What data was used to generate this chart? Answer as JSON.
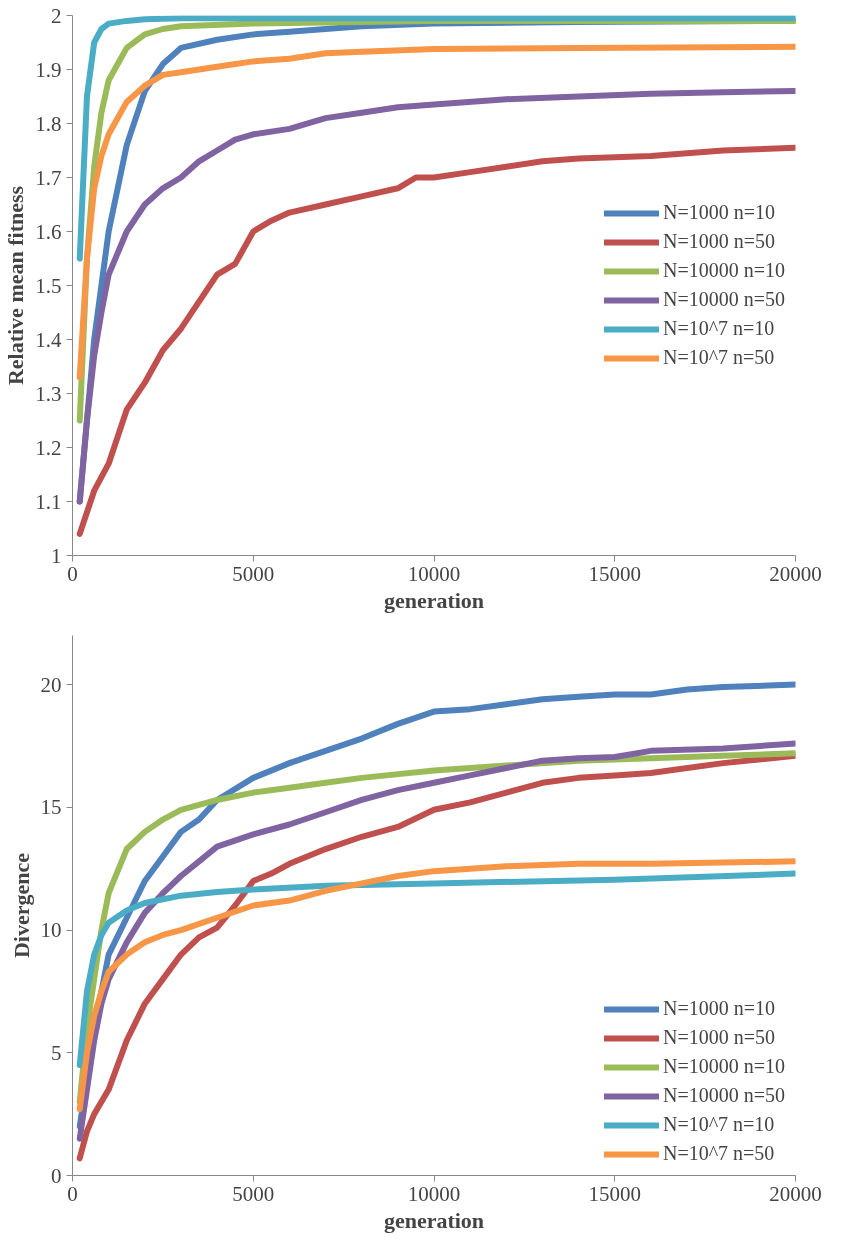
{
  "chart_data": [
    {
      "type": "line",
      "xlabel": "generation",
      "ylabel": "Relative mean fitness",
      "xlim": [
        0,
        20000
      ],
      "xticks": [
        0,
        5000,
        10000,
        15000,
        20000
      ],
      "ylim": [
        1,
        2
      ],
      "yticks": [
        1,
        1.1,
        1.2,
        1.3,
        1.4,
        1.5,
        1.6,
        1.7,
        1.8,
        1.9,
        2
      ],
      "grid": false,
      "legend": "right",
      "marker": "none",
      "line_style": "solid",
      "series": [
        {
          "name": "N=1000 n=10",
          "color": "#4f81bd",
          "x": [
            200,
            400,
            600,
            800,
            1000,
            1500,
            2000,
            2500,
            3000,
            4000,
            5000,
            6000,
            7000,
            8000,
            10000,
            14000,
            20000
          ],
          "values": [
            1.1,
            1.25,
            1.4,
            1.5,
            1.6,
            1.76,
            1.86,
            1.91,
            1.94,
            1.955,
            1.965,
            1.97,
            1.975,
            1.98,
            1.985,
            1.988,
            1.99
          ]
        },
        {
          "name": "N=1000 n=50",
          "color": "#c0504d",
          "x": [
            200,
            400,
            600,
            1000,
            1500,
            2000,
            2500,
            3000,
            3500,
            4000,
            4500,
            5000,
            5500,
            6000,
            7000,
            8000,
            9000,
            9500,
            10000,
            11000,
            12000,
            13000,
            14000,
            16000,
            18000,
            20000
          ],
          "values": [
            1.04,
            1.08,
            1.12,
            1.17,
            1.27,
            1.32,
            1.38,
            1.42,
            1.47,
            1.52,
            1.54,
            1.6,
            1.62,
            1.635,
            1.65,
            1.665,
            1.68,
            1.7,
            1.7,
            1.71,
            1.72,
            1.73,
            1.735,
            1.74,
            1.75,
            1.755
          ]
        },
        {
          "name": "N=10000 n=10",
          "color": "#9bbb59",
          "x": [
            200,
            400,
            600,
            800,
            1000,
            1500,
            2000,
            2500,
            3000,
            5000,
            10000,
            20000
          ],
          "values": [
            1.25,
            1.55,
            1.72,
            1.82,
            1.88,
            1.94,
            1.965,
            1.975,
            1.98,
            1.985,
            1.99,
            1.99
          ]
        },
        {
          "name": "N=10000 n=50",
          "color": "#8064a2",
          "x": [
            200,
            400,
            600,
            800,
            1000,
            1500,
            2000,
            2500,
            3000,
            3500,
            4000,
            4500,
            5000,
            6000,
            7000,
            8000,
            9000,
            10000,
            12000,
            14000,
            16000,
            18000,
            20000
          ],
          "values": [
            1.1,
            1.25,
            1.37,
            1.45,
            1.52,
            1.6,
            1.65,
            1.68,
            1.7,
            1.73,
            1.75,
            1.77,
            1.78,
            1.79,
            1.81,
            1.82,
            1.83,
            1.835,
            1.845,
            1.85,
            1.855,
            1.858,
            1.86
          ]
        },
        {
          "name": "N=10^7 n=10",
          "color": "#4bacc6",
          "x": [
            200,
            400,
            600,
            800,
            1000,
            1500,
            2000,
            3000,
            20000
          ],
          "values": [
            1.55,
            1.85,
            1.95,
            1.975,
            1.985,
            1.99,
            1.993,
            1.995,
            1.995
          ]
        },
        {
          "name": "N=10^7 n=50",
          "color": "#f79646",
          "x": [
            200,
            400,
            600,
            800,
            1000,
            1500,
            2000,
            2500,
            3000,
            4000,
            5000,
            6000,
            7000,
            8000,
            10000,
            14000,
            20000
          ],
          "values": [
            1.33,
            1.55,
            1.68,
            1.74,
            1.78,
            1.84,
            1.87,
            1.89,
            1.895,
            1.905,
            1.915,
            1.92,
            1.93,
            1.933,
            1.938,
            1.94,
            1.942
          ]
        }
      ]
    },
    {
      "type": "line",
      "xlabel": "generation",
      "ylabel": "Divergence",
      "xlim": [
        0,
        20000
      ],
      "xticks": [
        0,
        5000,
        10000,
        15000,
        20000
      ],
      "ylim": [
        0,
        22
      ],
      "yticks": [
        0,
        5,
        10,
        15,
        20
      ],
      "grid": false,
      "legend": "bottom right",
      "marker": "none",
      "line_style": "solid",
      "series": [
        {
          "name": "N=1000 n=10",
          "color": "#4f81bd",
          "x": [
            200,
            400,
            600,
            800,
            1000,
            1500,
            2000,
            2500,
            3000,
            3500,
            4000,
            5000,
            6000,
            7000,
            8000,
            9000,
            10000,
            11000,
            12000,
            13000,
            14000,
            15000,
            16000,
            17000,
            18000,
            20000
          ],
          "values": [
            2.0,
            4.0,
            6.0,
            7.5,
            9.0,
            10.5,
            12.0,
            13.0,
            14.0,
            14.5,
            15.3,
            16.2,
            16.8,
            17.3,
            17.8,
            18.4,
            18.9,
            19.0,
            19.2,
            19.4,
            19.5,
            19.6,
            19.6,
            19.8,
            19.9,
            20.0
          ]
        },
        {
          "name": "N=1000 n=50",
          "color": "#c0504d",
          "x": [
            200,
            400,
            600,
            1000,
            1500,
            2000,
            2500,
            3000,
            3500,
            4000,
            4500,
            5000,
            5500,
            6000,
            7000,
            8000,
            9000,
            10000,
            11000,
            12000,
            13000,
            14000,
            15000,
            16000,
            18000,
            20000
          ],
          "values": [
            0.7,
            1.8,
            2.5,
            3.5,
            5.5,
            7.0,
            8.0,
            9.0,
            9.7,
            10.1,
            11.0,
            12.0,
            12.3,
            12.7,
            13.3,
            13.8,
            14.2,
            14.9,
            15.2,
            15.6,
            16.0,
            16.2,
            16.3,
            16.4,
            16.8,
            17.1
          ]
        },
        {
          "name": "N=10000 n=10",
          "color": "#9bbb59",
          "x": [
            200,
            400,
            600,
            800,
            1000,
            1500,
            2000,
            2500,
            3000,
            4000,
            5000,
            6000,
            7000,
            8000,
            10000,
            12000,
            14000,
            16000,
            18000,
            20000
          ],
          "values": [
            3.0,
            6.0,
            8.0,
            10.0,
            11.5,
            13.3,
            14.0,
            14.5,
            14.9,
            15.3,
            15.6,
            15.8,
            16.0,
            16.2,
            16.5,
            16.7,
            16.9,
            17.0,
            17.1,
            17.2
          ]
        },
        {
          "name": "N=10000 n=50",
          "color": "#8064a2",
          "x": [
            200,
            400,
            600,
            800,
            1000,
            1500,
            2000,
            2500,
            3000,
            3500,
            4000,
            5000,
            6000,
            7000,
            8000,
            9000,
            10000,
            11000,
            12000,
            13000,
            14000,
            15000,
            16000,
            18000,
            20000
          ],
          "values": [
            1.5,
            3.5,
            5.5,
            7.0,
            8.0,
            9.5,
            10.7,
            11.5,
            12.2,
            12.8,
            13.4,
            13.9,
            14.3,
            14.8,
            15.3,
            15.7,
            16.0,
            16.3,
            16.6,
            16.9,
            17.0,
            17.05,
            17.3,
            17.4,
            17.6
          ]
        },
        {
          "name": "N=10^7 n=10",
          "color": "#4bacc6",
          "x": [
            200,
            400,
            600,
            800,
            1000,
            1500,
            2000,
            3000,
            4000,
            5000,
            7000,
            10000,
            15000,
            20000
          ],
          "values": [
            4.5,
            7.5,
            9.0,
            9.8,
            10.3,
            10.8,
            11.1,
            11.4,
            11.55,
            11.65,
            11.8,
            11.9,
            12.05,
            12.3
          ]
        },
        {
          "name": "N=10^7 n=50",
          "color": "#f79646",
          "x": [
            200,
            400,
            600,
            800,
            1000,
            1500,
            2000,
            2500,
            3000,
            4000,
            5000,
            6000,
            7000,
            8000,
            9000,
            10000,
            12000,
            14000,
            16000,
            18000,
            20000
          ],
          "values": [
            2.7,
            5.0,
            6.5,
            7.5,
            8.3,
            9.0,
            9.5,
            9.8,
            10.0,
            10.5,
            11.0,
            11.2,
            11.6,
            11.9,
            12.2,
            12.4,
            12.6,
            12.7,
            12.7,
            12.75,
            12.8
          ]
        }
      ]
    }
  ]
}
